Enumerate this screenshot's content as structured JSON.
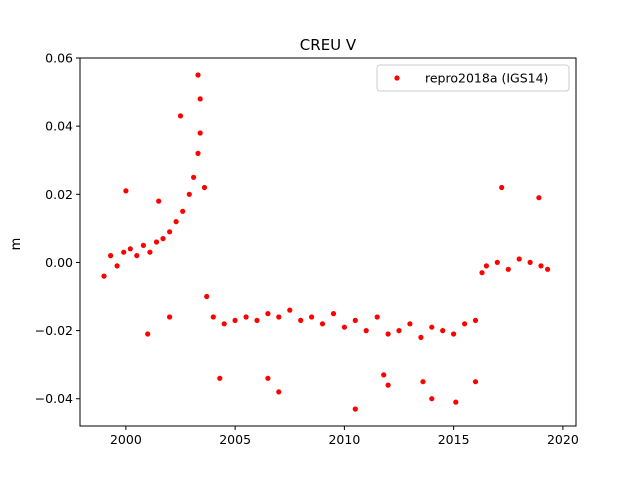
{
  "chart_data": {
    "type": "scatter",
    "title": "CREU V",
    "xlabel": "",
    "ylabel": "m",
    "xlim": [
      1997.9,
      2020.6
    ],
    "ylim": [
      -0.048,
      0.06
    ],
    "xticks": [
      2000,
      2005,
      2010,
      2015,
      2020
    ],
    "yticks": [
      -0.04,
      -0.02,
      0.0,
      0.02,
      0.04,
      0.06
    ],
    "xtick_labels": [
      "2000",
      "2005",
      "2010",
      "2015",
      "2020"
    ],
    "ytick_labels": [
      "−0.04",
      "−0.02",
      "0.00",
      "0.02",
      "0.04",
      "0.06"
    ],
    "grid": false,
    "legend_position": "top-right",
    "marker_color": "#ff0000",
    "series": [
      {
        "name": "repro2018a (IGS14)",
        "color": "#ff0000",
        "x": [
          1999.0,
          1999.3,
          1999.6,
          1999.9,
          2000.2,
          2000.5,
          2000.8,
          2001.1,
          2001.4,
          2001.7,
          2002.0,
          2002.3,
          2002.6,
          2002.9,
          2003.1,
          2003.3,
          2003.4,
          2003.6,
          2003.7,
          2004.0,
          2004.5,
          2005.0,
          2005.5,
          2006.0,
          2006.5,
          2007.0,
          2007.5,
          2008.0,
          2008.5,
          2009.0,
          2009.5,
          2010.0,
          2010.5,
          2011.0,
          2011.5,
          2012.0,
          2012.5,
          2013.0,
          2013.5,
          2014.0,
          2014.5,
          2015.0,
          2015.5,
          2016.0,
          2016.3,
          2016.5,
          2017.0,
          2017.5,
          2018.0,
          2018.5,
          2019.0,
          2019.3,
          2000.0,
          2001.0,
          2002.5,
          2003.3,
          2003.4,
          2007.0,
          2010.5,
          2012.0,
          2014.0,
          2016.0,
          2017.2,
          2018.9,
          2006.5,
          2011.8,
          2015.1,
          2001.5,
          2002.0,
          2004.3,
          2013.6
        ],
        "y": [
          -0.004,
          0.002,
          -0.001,
          0.003,
          0.004,
          0.002,
          0.005,
          0.003,
          0.006,
          0.007,
          0.009,
          0.012,
          0.015,
          0.02,
          0.025,
          0.032,
          0.038,
          0.022,
          -0.01,
          -0.016,
          -0.018,
          -0.017,
          -0.016,
          -0.017,
          -0.015,
          -0.016,
          -0.014,
          -0.017,
          -0.016,
          -0.018,
          -0.015,
          -0.019,
          -0.017,
          -0.02,
          -0.016,
          -0.021,
          -0.02,
          -0.018,
          -0.022,
          -0.019,
          -0.02,
          -0.021,
          -0.018,
          -0.017,
          -0.003,
          -0.001,
          0.0,
          -0.002,
          0.001,
          0.0,
          -0.001,
          -0.002,
          0.021,
          -0.021,
          0.043,
          0.055,
          0.048,
          -0.038,
          -0.043,
          -0.036,
          -0.04,
          -0.035,
          0.022,
          0.019,
          -0.034,
          -0.033,
          -0.041,
          0.018,
          -0.016,
          -0.034,
          -0.035
        ]
      }
    ]
  }
}
